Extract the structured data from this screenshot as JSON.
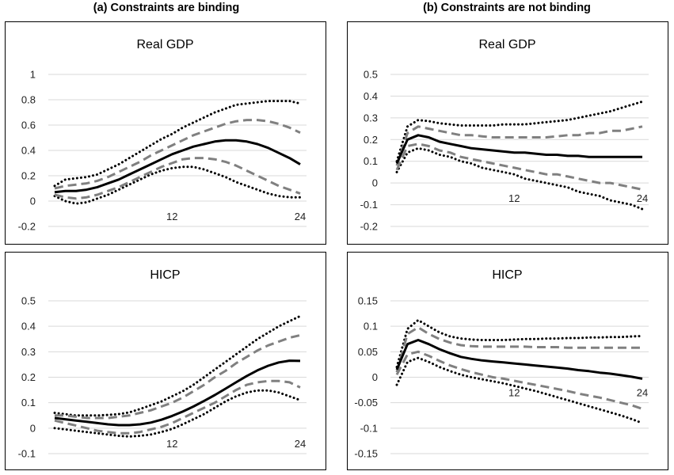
{
  "column_titles": {
    "left": "(a) Constraints are binding",
    "right": "(b) Constraints are not binding"
  },
  "colors": {
    "median": "#000000",
    "inner_band": "#808080",
    "outer_band": "#000000",
    "grid": "#d9d9d9"
  },
  "chart_data": [
    {
      "type": "line",
      "title": "Real GDP",
      "column": "(a) Constraints are binding",
      "x": [
        1,
        2,
        3,
        4,
        5,
        6,
        7,
        8,
        9,
        10,
        11,
        12,
        13,
        14,
        15,
        16,
        17,
        18,
        19,
        20,
        21,
        22,
        23,
        24
      ],
      "ylim": [
        -0.2,
        1
      ],
      "yticks": [
        "1",
        "0.8",
        "0.6",
        "0.4",
        "0.2",
        "0",
        "-0.2"
      ],
      "ytick_values": [
        1,
        0.8,
        0.6,
        0.4,
        0.2,
        0,
        -0.2
      ],
      "xtick_labels": [
        "12",
        "24"
      ],
      "xtick_values": [
        12,
        24
      ],
      "series": [
        {
          "name": "median",
          "style": "solid",
          "values": [
            0.07,
            0.08,
            0.08,
            0.09,
            0.11,
            0.14,
            0.17,
            0.21,
            0.25,
            0.29,
            0.33,
            0.37,
            0.4,
            0.43,
            0.45,
            0.47,
            0.48,
            0.48,
            0.47,
            0.45,
            0.42,
            0.38,
            0.34,
            0.29
          ]
        },
        {
          "name": "inner upper",
          "style": "dashed",
          "values": [
            0.1,
            0.12,
            0.13,
            0.14,
            0.16,
            0.19,
            0.23,
            0.27,
            0.31,
            0.36,
            0.4,
            0.44,
            0.48,
            0.52,
            0.55,
            0.58,
            0.61,
            0.63,
            0.64,
            0.64,
            0.63,
            0.61,
            0.58,
            0.54
          ]
        },
        {
          "name": "inner lower",
          "style": "dashed",
          "values": [
            0.05,
            0.03,
            0.02,
            0.03,
            0.05,
            0.08,
            0.11,
            0.15,
            0.19,
            0.23,
            0.27,
            0.3,
            0.33,
            0.34,
            0.34,
            0.33,
            0.31,
            0.28,
            0.24,
            0.2,
            0.16,
            0.12,
            0.09,
            0.06
          ]
        },
        {
          "name": "outer upper",
          "style": "dotted",
          "values": [
            0.12,
            0.17,
            0.18,
            0.19,
            0.21,
            0.25,
            0.29,
            0.34,
            0.39,
            0.44,
            0.49,
            0.53,
            0.58,
            0.62,
            0.66,
            0.7,
            0.73,
            0.76,
            0.77,
            0.78,
            0.79,
            0.79,
            0.79,
            0.77
          ]
        },
        {
          "name": "outer lower",
          "style": "dotted",
          "values": [
            0.04,
            0.0,
            -0.02,
            -0.01,
            0.02,
            0.05,
            0.09,
            0.13,
            0.17,
            0.21,
            0.24,
            0.26,
            0.27,
            0.27,
            0.25,
            0.22,
            0.19,
            0.15,
            0.12,
            0.09,
            0.06,
            0.04,
            0.03,
            0.03
          ]
        }
      ]
    },
    {
      "type": "line",
      "title": "Real GDP",
      "column": "(b) Constraints are not binding",
      "x": [
        1,
        2,
        3,
        4,
        5,
        6,
        7,
        8,
        9,
        10,
        11,
        12,
        13,
        14,
        15,
        16,
        17,
        18,
        19,
        20,
        21,
        22,
        23,
        24
      ],
      "ylim": [
        -0.2,
        0.5
      ],
      "yticks": [
        "0.5",
        "0.4",
        "0.3",
        "0.2",
        "0.1",
        "0",
        "-0.1",
        "-0.2"
      ],
      "ytick_values": [
        0.5,
        0.4,
        0.3,
        0.2,
        0.1,
        0,
        -0.1,
        -0.2
      ],
      "xtick_labels": [
        "12",
        "24"
      ],
      "xtick_values": [
        12,
        24
      ],
      "series": [
        {
          "name": "median",
          "style": "solid",
          "values": [
            0.09,
            0.2,
            0.22,
            0.21,
            0.19,
            0.18,
            0.17,
            0.16,
            0.155,
            0.15,
            0.145,
            0.14,
            0.14,
            0.135,
            0.13,
            0.13,
            0.125,
            0.125,
            0.12,
            0.12,
            0.12,
            0.12,
            0.12,
            0.12
          ]
        },
        {
          "name": "inner upper",
          "style": "dashed",
          "values": [
            0.08,
            0.23,
            0.26,
            0.25,
            0.24,
            0.23,
            0.22,
            0.22,
            0.215,
            0.21,
            0.21,
            0.21,
            0.21,
            0.21,
            0.21,
            0.215,
            0.22,
            0.22,
            0.23,
            0.23,
            0.24,
            0.24,
            0.25,
            0.26
          ]
        },
        {
          "name": "inner lower",
          "style": "dashed",
          "values": [
            0.06,
            0.17,
            0.18,
            0.17,
            0.15,
            0.14,
            0.12,
            0.11,
            0.1,
            0.09,
            0.08,
            0.07,
            0.06,
            0.05,
            0.04,
            0.04,
            0.03,
            0.02,
            0.01,
            0.0,
            0.0,
            -0.01,
            -0.02,
            -0.03
          ]
        },
        {
          "name": "outer upper",
          "style": "dotted",
          "values": [
            0.1,
            0.26,
            0.29,
            0.285,
            0.275,
            0.27,
            0.265,
            0.265,
            0.265,
            0.265,
            0.27,
            0.27,
            0.27,
            0.275,
            0.28,
            0.285,
            0.29,
            0.3,
            0.31,
            0.32,
            0.33,
            0.345,
            0.36,
            0.375
          ]
        },
        {
          "name": "outer lower",
          "style": "dotted",
          "values": [
            0.05,
            0.14,
            0.16,
            0.15,
            0.13,
            0.12,
            0.1,
            0.09,
            0.07,
            0.06,
            0.05,
            0.04,
            0.02,
            0.01,
            0.0,
            -0.01,
            -0.02,
            -0.04,
            -0.05,
            -0.06,
            -0.08,
            -0.09,
            -0.1,
            -0.12
          ]
        }
      ]
    },
    {
      "type": "line",
      "title": "HICP",
      "column": "(a) Constraints are binding",
      "x": [
        1,
        2,
        3,
        4,
        5,
        6,
        7,
        8,
        9,
        10,
        11,
        12,
        13,
        14,
        15,
        16,
        17,
        18,
        19,
        20,
        21,
        22,
        23,
        24
      ],
      "ylim": [
        -0.1,
        0.5
      ],
      "yticks": [
        "0.5",
        "0.4",
        "0.3",
        "0.2",
        "0.1",
        "0",
        "-0.1"
      ],
      "ytick_values": [
        0.5,
        0.4,
        0.3,
        0.2,
        0.1,
        0,
        -0.1
      ],
      "xtick_labels": [
        "12",
        "24"
      ],
      "xtick_values": [
        12,
        24
      ],
      "series": [
        {
          "name": "median",
          "style": "solid",
          "values": [
            0.04,
            0.035,
            0.03,
            0.025,
            0.02,
            0.015,
            0.012,
            0.012,
            0.015,
            0.022,
            0.033,
            0.048,
            0.065,
            0.085,
            0.107,
            0.13,
            0.155,
            0.18,
            0.205,
            0.227,
            0.245,
            0.258,
            0.265,
            0.264
          ]
        },
        {
          "name": "inner upper",
          "style": "dashed",
          "values": [
            0.05,
            0.05,
            0.045,
            0.04,
            0.04,
            0.04,
            0.045,
            0.05,
            0.06,
            0.07,
            0.085,
            0.1,
            0.12,
            0.145,
            0.17,
            0.2,
            0.225,
            0.255,
            0.28,
            0.305,
            0.325,
            0.34,
            0.355,
            0.365
          ]
        },
        {
          "name": "inner lower",
          "style": "dashed",
          "values": [
            0.03,
            0.02,
            0.01,
            0.0,
            -0.01,
            -0.015,
            -0.02,
            -0.02,
            -0.015,
            -0.005,
            0.005,
            0.02,
            0.04,
            0.06,
            0.08,
            0.1,
            0.125,
            0.15,
            0.17,
            0.18,
            0.185,
            0.185,
            0.18,
            0.16
          ]
        },
        {
          "name": "outer upper",
          "style": "dotted",
          "values": [
            0.06,
            0.055,
            0.05,
            0.05,
            0.05,
            0.052,
            0.055,
            0.062,
            0.075,
            0.09,
            0.105,
            0.125,
            0.145,
            0.17,
            0.2,
            0.23,
            0.26,
            0.29,
            0.32,
            0.35,
            0.375,
            0.4,
            0.42,
            0.44
          ]
        },
        {
          "name": "outer lower",
          "style": "dotted",
          "values": [
            0.0,
            -0.005,
            -0.01,
            -0.015,
            -0.02,
            -0.025,
            -0.03,
            -0.033,
            -0.03,
            -0.025,
            -0.015,
            -0.003,
            0.015,
            0.035,
            0.055,
            0.08,
            0.105,
            0.125,
            0.14,
            0.148,
            0.148,
            0.14,
            0.125,
            0.11
          ]
        }
      ]
    },
    {
      "type": "line",
      "title": "HICP",
      "column": "(b) Constraints are not binding",
      "x": [
        1,
        2,
        3,
        4,
        5,
        6,
        7,
        8,
        9,
        10,
        11,
        12,
        13,
        14,
        15,
        16,
        17,
        18,
        19,
        20,
        21,
        22,
        23,
        24
      ],
      "ylim": [
        -0.15,
        0.15
      ],
      "yticks": [
        "0.15",
        "0.1",
        "0.05",
        "0",
        "-0.05",
        "-0.1",
        "-0.15"
      ],
      "ytick_values": [
        0.15,
        0.1,
        0.05,
        0,
        -0.05,
        -0.1,
        -0.15
      ],
      "xtick_labels": [
        "12",
        "24"
      ],
      "xtick_values": [
        12,
        24
      ],
      "series": [
        {
          "name": "median",
          "style": "solid",
          "values": [
            0.015,
            0.065,
            0.073,
            0.065,
            0.055,
            0.047,
            0.04,
            0.036,
            0.033,
            0.031,
            0.029,
            0.027,
            0.025,
            0.023,
            0.021,
            0.019,
            0.017,
            0.014,
            0.012,
            0.009,
            0.007,
            0.004,
            0.001,
            -0.003
          ]
        },
        {
          "name": "inner upper",
          "style": "dashed",
          "values": [
            0.01,
            0.085,
            0.098,
            0.085,
            0.075,
            0.068,
            0.063,
            0.061,
            0.06,
            0.06,
            0.06,
            0.06,
            0.06,
            0.059,
            0.059,
            0.059,
            0.058,
            0.058,
            0.058,
            0.058,
            0.058,
            0.058,
            0.058,
            0.058
          ]
        },
        {
          "name": "inner lower",
          "style": "dashed",
          "values": [
            0.005,
            0.045,
            0.05,
            0.042,
            0.032,
            0.023,
            0.016,
            0.01,
            0.005,
            0.0,
            -0.003,
            -0.007,
            -0.011,
            -0.015,
            -0.019,
            -0.023,
            -0.027,
            -0.032,
            -0.036,
            -0.04,
            -0.045,
            -0.05,
            -0.055,
            -0.062
          ]
        },
        {
          "name": "outer upper",
          "style": "dotted",
          "values": [
            0.02,
            0.095,
            0.112,
            0.1,
            0.088,
            0.08,
            0.076,
            0.074,
            0.073,
            0.073,
            0.073,
            0.074,
            0.075,
            0.075,
            0.076,
            0.076,
            0.077,
            0.077,
            0.078,
            0.078,
            0.079,
            0.079,
            0.08,
            0.081
          ]
        },
        {
          "name": "outer lower",
          "style": "dotted",
          "values": [
            -0.015,
            0.03,
            0.038,
            0.03,
            0.02,
            0.012,
            0.005,
            0.0,
            -0.004,
            -0.008,
            -0.012,
            -0.017,
            -0.022,
            -0.027,
            -0.033,
            -0.039,
            -0.045,
            -0.051,
            -0.057,
            -0.063,
            -0.069,
            -0.075,
            -0.082,
            -0.09
          ]
        }
      ]
    }
  ]
}
